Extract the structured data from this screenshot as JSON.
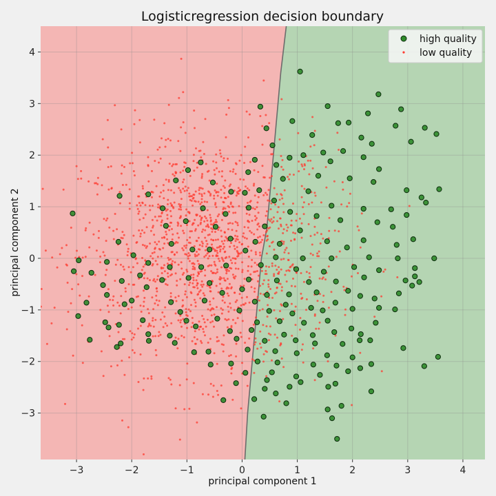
{
  "chart_data": {
    "type": "scatter",
    "title": "Logisticregression decision boundary",
    "xlabel": "principal component 1",
    "ylabel": "principal component 2",
    "xlim": [
      -3.65,
      4.4
    ],
    "ylim": [
      -3.9,
      4.5
    ],
    "x_ticks": [
      -3,
      -2,
      -1,
      0,
      1,
      2,
      3,
      4
    ],
    "y_ticks": [
      -3,
      -2,
      -1,
      0,
      1,
      2,
      3,
      4
    ],
    "grid": true,
    "legend_position": "top-right",
    "colors": {
      "region_low": "#f4b6b4",
      "region_high": "#b5d5b3",
      "high_point_fill": "#2f8b2a",
      "high_point_edge": "#0c2a0c",
      "low_point": "#ff3b30",
      "boundary": "#6b6b6b",
      "grid_low": "#d89a98",
      "grid_high": "#96b894"
    },
    "decision_boundary": [
      {
        "x": 0.05,
        "y": -3.9
      },
      {
        "x": 0.1,
        "y": -3.0
      },
      {
        "x": 0.15,
        "y": -2.4
      },
      {
        "x": 0.2,
        "y": -1.8
      },
      {
        "x": 0.25,
        "y": -1.2
      },
      {
        "x": 0.3,
        "y": -0.6
      },
      {
        "x": 0.35,
        "y": 0.0
      },
      {
        "x": 0.45,
        "y": 0.6
      },
      {
        "x": 0.5,
        "y": 1.2
      },
      {
        "x": 0.55,
        "y": 1.8
      },
      {
        "x": 0.6,
        "y": 2.4
      },
      {
        "x": 0.65,
        "y": 3.0
      },
      {
        "x": 0.7,
        "y": 3.6
      },
      {
        "x": 0.8,
        "y": 4.5
      }
    ],
    "series": [
      {
        "name": "high quality",
        "points": [
          {
            "x": 1.05,
            "y": 3.62
          },
          {
            "x": 0.33,
            "y": 2.94
          },
          {
            "x": 1.55,
            "y": 2.95
          },
          {
            "x": 2.47,
            "y": 3.18
          },
          {
            "x": 2.88,
            "y": 2.89
          },
          {
            "x": 2.28,
            "y": 2.81
          },
          {
            "x": 1.93,
            "y": 2.63
          },
          {
            "x": 1.74,
            "y": 2.62
          },
          {
            "x": 0.91,
            "y": 2.66
          },
          {
            "x": 3.31,
            "y": 2.53
          },
          {
            "x": 3.52,
            "y": 2.41
          },
          {
            "x": 2.78,
            "y": 2.57
          },
          {
            "x": 0.44,
            "y": 2.52
          },
          {
            "x": 0.55,
            "y": 2.19
          },
          {
            "x": 1.27,
            "y": 2.39
          },
          {
            "x": 2.35,
            "y": 2.22
          },
          {
            "x": 3.06,
            "y": 2.26
          },
          {
            "x": 2.16,
            "y": 2.34
          },
          {
            "x": 1.47,
            "y": 2.05
          },
          {
            "x": 1.83,
            "y": 2.08
          },
          {
            "x": 1.11,
            "y": 2.0
          },
          {
            "x": 0.86,
            "y": 1.95
          },
          {
            "x": 2.2,
            "y": 1.96
          },
          {
            "x": 0.62,
            "y": 1.81
          },
          {
            "x": 1.6,
            "y": 1.88
          },
          {
            "x": -0.98,
            "y": 1.71
          },
          {
            "x": -0.75,
            "y": 1.86
          },
          {
            "x": 0.23,
            "y": 1.91
          },
          {
            "x": 0.11,
            "y": 1.67
          },
          {
            "x": 2.48,
            "y": 1.73
          },
          {
            "x": 1.95,
            "y": 1.55
          },
          {
            "x": 1.38,
            "y": 1.6
          },
          {
            "x": 0.74,
            "y": 1.54
          },
          {
            "x": 2.38,
            "y": 1.48
          },
          {
            "x": 3.57,
            "y": 1.34
          },
          {
            "x": 2.98,
            "y": 1.32
          },
          {
            "x": 1.2,
            "y": 1.3
          },
          {
            "x": 0.31,
            "y": 1.32
          },
          {
            "x": -1.2,
            "y": 1.51
          },
          {
            "x": -0.53,
            "y": 1.47
          },
          {
            "x": -0.2,
            "y": 1.29
          },
          {
            "x": 0.05,
            "y": 1.27
          },
          {
            "x": 0.58,
            "y": 1.12
          },
          {
            "x": 1.62,
            "y": 1.02
          },
          {
            "x": 2.2,
            "y": 0.96
          },
          {
            "x": 2.7,
            "y": 0.95
          },
          {
            "x": 3.33,
            "y": 1.08
          },
          {
            "x": 3.25,
            "y": 1.18
          },
          {
            "x": -2.22,
            "y": 1.21
          },
          {
            "x": -1.7,
            "y": 1.24
          },
          {
            "x": -1.44,
            "y": 0.97
          },
          {
            "x": -0.71,
            "y": 0.97
          },
          {
            "x": -0.3,
            "y": 0.86
          },
          {
            "x": 0.12,
            "y": 0.98
          },
          {
            "x": 0.87,
            "y": 0.9
          },
          {
            "x": 1.35,
            "y": 0.82
          },
          {
            "x": 1.78,
            "y": 0.74
          },
          {
            "x": 2.45,
            "y": 0.7
          },
          {
            "x": 2.98,
            "y": 0.84
          },
          {
            "x": -3.07,
            "y": 0.87
          },
          {
            "x": -1.02,
            "y": 0.72
          },
          {
            "x": -0.48,
            "y": 0.61
          },
          {
            "x": 0.41,
            "y": 0.62
          },
          {
            "x": 1.05,
            "y": 0.54
          },
          {
            "x": 2.2,
            "y": 0.35
          },
          {
            "x": 2.73,
            "y": 0.61
          },
          {
            "x": 3.1,
            "y": 0.37
          },
          {
            "x": -1.38,
            "y": 0.63
          },
          {
            "x": -0.21,
            "y": 0.38
          },
          {
            "x": 0.24,
            "y": 0.32
          },
          {
            "x": 0.68,
            "y": 0.28
          },
          {
            "x": 1.54,
            "y": 0.33
          },
          {
            "x": 1.9,
            "y": 0.21
          },
          {
            "x": 2.8,
            "y": 0.26
          },
          {
            "x": -2.24,
            "y": 0.32
          },
          {
            "x": -1.7,
            "y": -0.09
          },
          {
            "x": -1.28,
            "y": 0.28
          },
          {
            "x": -0.9,
            "y": 0.17
          },
          {
            "x": -0.59,
            "y": 0.17
          },
          {
            "x": 0.06,
            "y": 0.15
          },
          {
            "x": 0.61,
            "y": 0.02
          },
          {
            "x": 1.1,
            "y": 0.0
          },
          {
            "x": 1.62,
            "y": 0.0
          },
          {
            "x": 2.3,
            "y": 0.02
          },
          {
            "x": 3.48,
            "y": 0.0
          },
          {
            "x": 2.82,
            "y": 0.0
          },
          {
            "x": -2.96,
            "y": -0.04
          },
          {
            "x": -2.45,
            "y": -0.07
          },
          {
            "x": -1.97,
            "y": 0.06
          },
          {
            "x": -1.31,
            "y": -0.17
          },
          {
            "x": -0.74,
            "y": -0.17
          },
          {
            "x": -0.29,
            "y": -0.14
          },
          {
            "x": 0.34,
            "y": -0.13
          },
          {
            "x": 0.98,
            "y": -0.21
          },
          {
            "x": 1.48,
            "y": -0.26
          },
          {
            "x": 2.03,
            "y": -0.17
          },
          {
            "x": 2.48,
            "y": -0.23
          },
          {
            "x": 3.13,
            "y": -0.19
          },
          {
            "x": -3.05,
            "y": -0.25
          },
          {
            "x": -2.73,
            "y": -0.28
          },
          {
            "x": -2.18,
            "y": -0.44
          },
          {
            "x": -1.85,
            "y": -0.33
          },
          {
            "x": -1.45,
            "y": -0.42
          },
          {
            "x": -0.97,
            "y": -0.38
          },
          {
            "x": -0.59,
            "y": -0.48
          },
          {
            "x": 0.12,
            "y": -0.41
          },
          {
            "x": 0.63,
            "y": -0.43
          },
          {
            "x": 1.21,
            "y": -0.46
          },
          {
            "x": 1.7,
            "y": -0.45
          },
          {
            "x": 2.21,
            "y": -0.37
          },
          {
            "x": 2.96,
            "y": -0.43
          },
          {
            "x": 3.21,
            "y": -0.46
          },
          {
            "x": 3.13,
            "y": -0.35
          },
          {
            "x": -2.52,
            "y": -0.52
          },
          {
            "x": -1.73,
            "y": -0.56
          },
          {
            "x": -0.36,
            "y": -0.67
          },
          {
            "x": 0.0,
            "y": -0.6
          },
          {
            "x": 0.45,
            "y": -0.71
          },
          {
            "x": 0.85,
            "y": -0.7
          },
          {
            "x": 1.35,
            "y": -0.66
          },
          {
            "x": 1.92,
            "y": -0.63
          },
          {
            "x": 2.4,
            "y": -0.78
          },
          {
            "x": 2.84,
            "y": -0.68
          },
          {
            "x": 3.08,
            "y": -0.53
          },
          {
            "x": -2.45,
            "y": -0.71
          },
          {
            "x": -2.82,
            "y": -0.86
          },
          {
            "x": -2.0,
            "y": -0.82
          },
          {
            "x": -1.29,
            "y": -0.85
          },
          {
            "x": -0.68,
            "y": -0.82
          },
          {
            "x": 0.23,
            "y": -0.84
          },
          {
            "x": 0.79,
            "y": -0.9
          },
          {
            "x": 1.25,
            "y": -0.96
          },
          {
            "x": 1.69,
            "y": -0.86
          },
          {
            "x": 2.14,
            "y": -0.73
          },
          {
            "x": 2.48,
            "y": -0.96
          },
          {
            "x": -2.13,
            "y": -0.89
          },
          {
            "x": -1.12,
            "y": -1.04
          },
          {
            "x": -0.05,
            "y": -1.01
          },
          {
            "x": 0.49,
            "y": -1.02
          },
          {
            "x": 0.91,
            "y": -1.07
          },
          {
            "x": 1.46,
            "y": -1.01
          },
          {
            "x": 2.0,
            "y": -0.98
          },
          {
            "x": 2.77,
            "y": -0.99
          },
          {
            "x": -2.97,
            "y": -1.12
          },
          {
            "x": -2.48,
            "y": -1.24
          },
          {
            "x": -1.8,
            "y": -1.2
          },
          {
            "x": -1.01,
            "y": -1.21
          },
          {
            "x": -0.45,
            "y": -1.17
          },
          {
            "x": 0.27,
            "y": -1.24
          },
          {
            "x": 0.68,
            "y": -1.22
          },
          {
            "x": 1.12,
            "y": -1.25
          },
          {
            "x": 1.55,
            "y": -1.21
          },
          {
            "x": 1.98,
            "y": -1.36
          },
          {
            "x": 2.42,
            "y": -1.25
          },
          {
            "x": -2.42,
            "y": -1.34
          },
          {
            "x": -2.23,
            "y": -1.29
          },
          {
            "x": -1.7,
            "y": -1.47
          },
          {
            "x": -1.31,
            "y": -1.5
          },
          {
            "x": -0.84,
            "y": -1.32
          },
          {
            "x": -0.22,
            "y": -1.41
          },
          {
            "x": 0.17,
            "y": -1.39
          },
          {
            "x": 0.76,
            "y": -1.48
          },
          {
            "x": 1.28,
            "y": -1.49
          },
          {
            "x": 1.67,
            "y": -1.43
          },
          {
            "x": 2.15,
            "y": -1.47
          },
          {
            "x": 2.32,
            "y": -1.59
          },
          {
            "x": -2.76,
            "y": -1.58
          },
          {
            "x": -2.27,
            "y": -1.72
          },
          {
            "x": -1.69,
            "y": -1.6
          },
          {
            "x": -1.22,
            "y": -1.64
          },
          {
            "x": -0.1,
            "y": -1.56
          },
          {
            "x": 0.41,
            "y": -1.6
          },
          {
            "x": 0.97,
            "y": -1.59
          },
          {
            "x": 1.32,
            "y": -1.65
          },
          {
            "x": 1.82,
            "y": -1.66
          },
          {
            "x": 2.13,
            "y": -1.59
          },
          {
            "x": -2.2,
            "y": -1.65
          },
          {
            "x": -0.61,
            "y": -1.81
          },
          {
            "x": 0.1,
            "y": -1.77
          },
          {
            "x": 0.6,
            "y": -1.8
          },
          {
            "x": 0.99,
            "y": -1.84
          },
          {
            "x": 1.54,
            "y": -1.88
          },
          {
            "x": 2.0,
            "y": -1.92
          },
          {
            "x": 2.92,
            "y": -1.74
          },
          {
            "x": 3.55,
            "y": -1.91
          },
          {
            "x": -0.87,
            "y": -1.82
          },
          {
            "x": -0.57,
            "y": -2.06
          },
          {
            "x": -0.2,
            "y": -2.04
          },
          {
            "x": 0.28,
            "y": -2.0
          },
          {
            "x": 0.64,
            "y": -2.02
          },
          {
            "x": 1.29,
            "y": -2.06
          },
          {
            "x": 1.71,
            "y": -2.08
          },
          {
            "x": 2.34,
            "y": -2.05
          },
          {
            "x": 3.3,
            "y": -2.09
          },
          {
            "x": 0.06,
            "y": -2.22
          },
          {
            "x": 0.54,
            "y": -2.21
          },
          {
            "x": 0.98,
            "y": -2.29
          },
          {
            "x": 1.41,
            "y": -2.26
          },
          {
            "x": 1.92,
            "y": -2.19
          },
          {
            "x": 2.14,
            "y": -2.13
          },
          {
            "x": -0.11,
            "y": -2.42
          },
          {
            "x": 0.45,
            "y": -2.36
          },
          {
            "x": 1.06,
            "y": -2.4
          },
          {
            "x": 1.56,
            "y": -2.49
          },
          {
            "x": 1.69,
            "y": -2.43
          },
          {
            "x": 0.61,
            "y": -2.62
          },
          {
            "x": 0.86,
            "y": -2.49
          },
          {
            "x": 0.22,
            "y": -2.73
          },
          {
            "x": 0.41,
            "y": -2.53
          },
          {
            "x": 2.34,
            "y": -2.58
          },
          {
            "x": -0.34,
            "y": -2.75
          },
          {
            "x": 0.8,
            "y": -2.81
          },
          {
            "x": 1.8,
            "y": -2.86
          },
          {
            "x": 1.55,
            "y": -2.93
          },
          {
            "x": 1.63,
            "y": -3.1
          },
          {
            "x": 0.39,
            "y": -3.07
          },
          {
            "x": 1.72,
            "y": -3.5
          }
        ]
      },
      {
        "name": "low quality",
        "points": []
      }
    ]
  },
  "legend": {
    "items": [
      {
        "label": "high quality",
        "marker": "circle-outlined"
      },
      {
        "label": "low quality",
        "marker": "small-dot"
      }
    ]
  }
}
